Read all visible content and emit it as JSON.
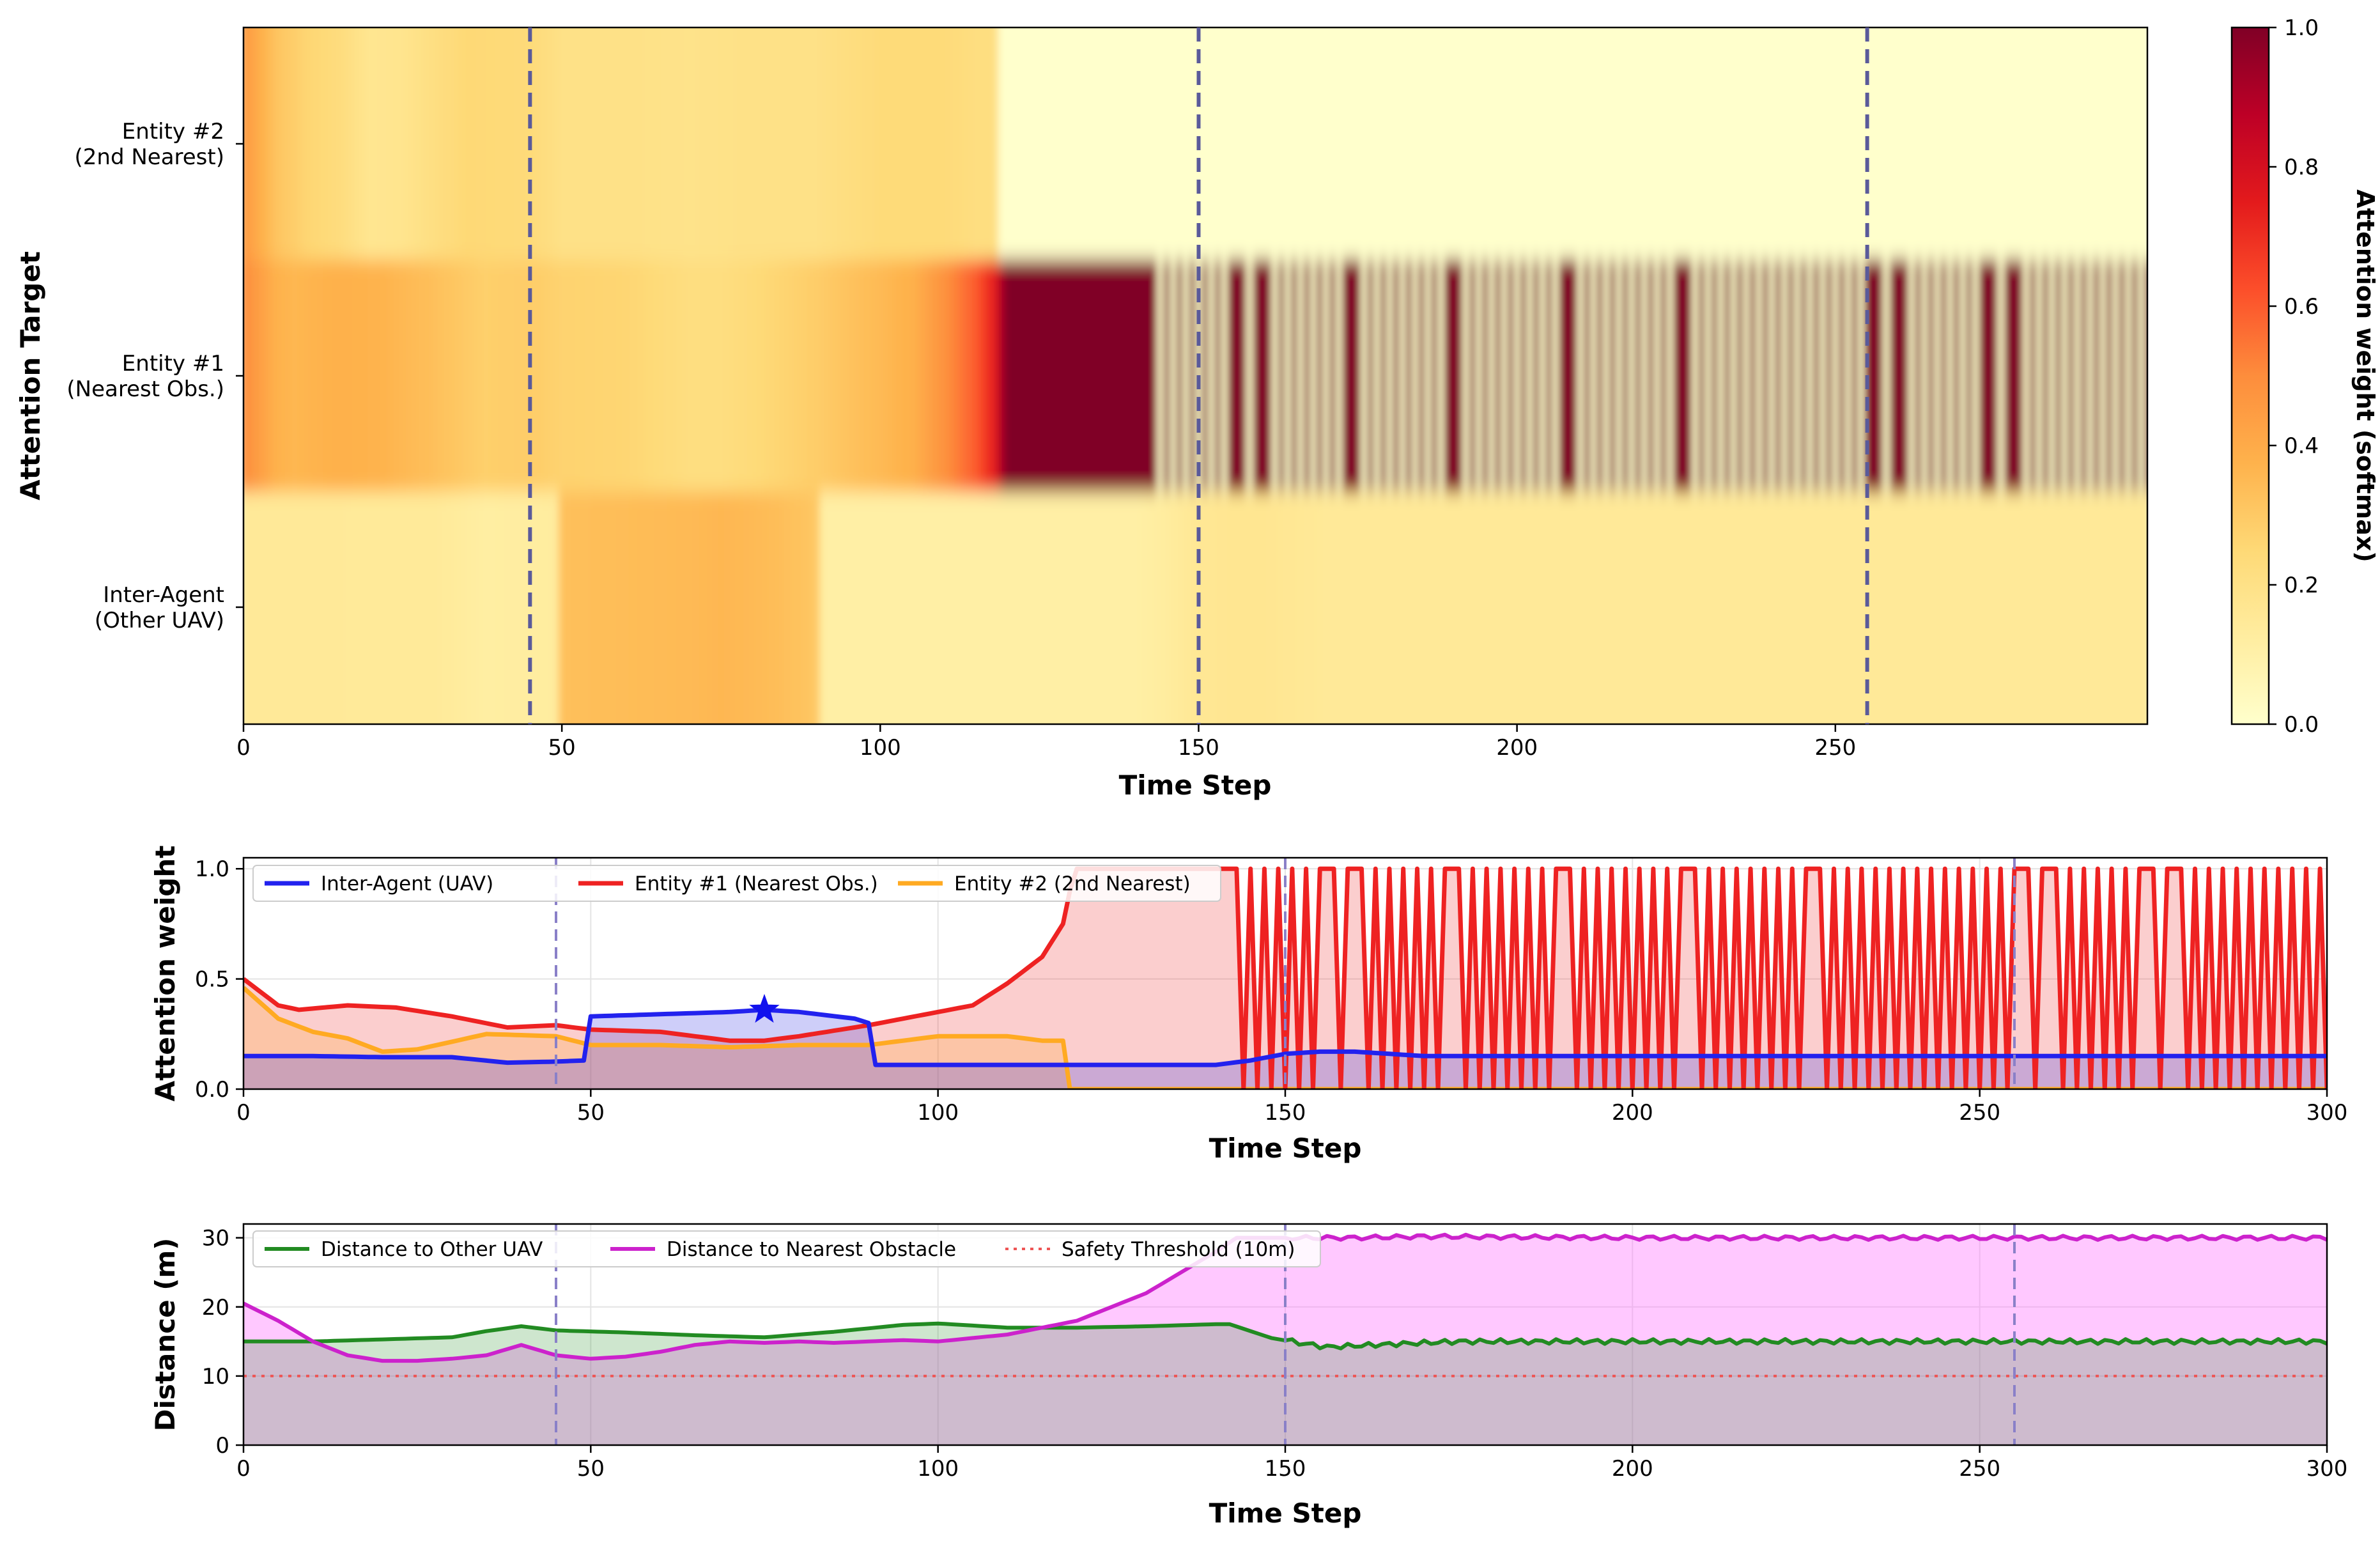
{
  "heatmap": {
    "title": "",
    "xlabel": "Time Step",
    "ylabel": "Attention Target",
    "x_range": [
      0,
      299
    ],
    "x_ticks": [
      "0",
      "50",
      "100",
      "150",
      "200",
      "250"
    ],
    "rows": [
      {
        "line1": "Entity #2",
        "line2": "(2nd Nearest)"
      },
      {
        "line1": "Entity #1",
        "line2": "(Nearest Obs.)"
      },
      {
        "line1": "Inter-Agent",
        "line2": "(Other UAV)"
      }
    ],
    "colorbar": {
      "label": "Attention weight (softmax)",
      "ticks": [
        "0.0",
        "0.2",
        "0.4",
        "0.6",
        "0.8",
        "1.0"
      ],
      "range": [
        0,
        1
      ],
      "colormap": [
        "#ffffcc",
        "#ffeda0",
        "#fed976",
        "#feb24c",
        "#fd8d3c",
        "#fc4e2a",
        "#e31a1c",
        "#bd0026",
        "#800026"
      ]
    },
    "markers": [
      45,
      150,
      255
    ]
  },
  "weights_panel": {
    "xlabel": "Time Step",
    "ylabel": "Attention weight",
    "x_ticks": [
      "0",
      "50",
      "100",
      "150",
      "200",
      "250",
      "300"
    ],
    "y_ticks": [
      "0.0",
      "0.5",
      "1.0"
    ],
    "legend": [
      {
        "label": "Inter-Agent (UAV)",
        "color": "#2222ee"
      },
      {
        "label": "Entity #1 (Nearest Obs.)",
        "color": "#ee2222"
      },
      {
        "label": "Entity #2 (2nd Nearest)",
        "color": "#ffaa22"
      }
    ],
    "star_marker": {
      "x": 75,
      "y": 0.36
    }
  },
  "distance_panel": {
    "xlabel": "Time Step",
    "ylabel": "Distance (m)",
    "x_ticks": [
      "0",
      "50",
      "100",
      "150",
      "200",
      "250",
      "300"
    ],
    "y_ticks": [
      "0",
      "10",
      "20",
      "30"
    ],
    "legend": [
      {
        "label": "Distance to Other UAV",
        "color": "#228b22"
      },
      {
        "label": "Distance to Nearest Obstacle",
        "color": "#cc22cc"
      },
      {
        "label": "Safety Threshold (10m)",
        "color": "#ee5555"
      }
    ],
    "threshold": 10
  },
  "chart_data": [
    {
      "type": "heatmap",
      "xlabel": "Time Step",
      "ylabel": "Attention Target",
      "rows": [
        "Entity #2 (2nd Nearest)",
        "Entity #1 (Nearest Obs.)",
        "Inter-Agent (Other UAV)"
      ],
      "x_range": [
        0,
        299
      ],
      "colorbar_range": [
        0,
        1
      ],
      "markers": [
        45,
        150,
        255
      ],
      "note": "Cell values are the same attention weights as the line chart below."
    },
    {
      "type": "line",
      "xlabel": "Time Step",
      "ylabel": "Attention weight",
      "xlim": [
        0,
        300
      ],
      "ylim": [
        0,
        1.05
      ],
      "series": [
        {
          "name": "Inter-Agent (UAV)",
          "points": [
            [
              0,
              0.15
            ],
            [
              10,
              0.15
            ],
            [
              20,
              0.145
            ],
            [
              30,
              0.145
            ],
            [
              38,
              0.12
            ],
            [
              45,
              0.125
            ],
            [
              49,
              0.13
            ],
            [
              50,
              0.33
            ],
            [
              60,
              0.34
            ],
            [
              70,
              0.35
            ],
            [
              75,
              0.36
            ],
            [
              80,
              0.35
            ],
            [
              88,
              0.32
            ],
            [
              90,
              0.3
            ],
            [
              91,
              0.11
            ],
            [
              100,
              0.11
            ],
            [
              110,
              0.11
            ],
            [
              120,
              0.11
            ],
            [
              130,
              0.11
            ],
            [
              140,
              0.11
            ],
            [
              145,
              0.13
            ],
            [
              150,
              0.16
            ],
            [
              155,
              0.17
            ],
            [
              160,
              0.17
            ],
            [
              170,
              0.15
            ],
            [
              180,
              0.15
            ],
            [
              200,
              0.15
            ],
            [
              220,
              0.15
            ],
            [
              240,
              0.15
            ],
            [
              260,
              0.15
            ],
            [
              280,
              0.15
            ],
            [
              300,
              0.15
            ]
          ]
        },
        {
          "name": "Entity #1 (Nearest Obs.)",
          "points": [
            [
              0,
              0.5
            ],
            [
              5,
              0.38
            ],
            [
              8,
              0.36
            ],
            [
              15,
              0.38
            ],
            [
              22,
              0.37
            ],
            [
              30,
              0.33
            ],
            [
              38,
              0.28
            ],
            [
              45,
              0.29
            ],
            [
              50,
              0.27
            ],
            [
              60,
              0.26
            ],
            [
              70,
              0.22
            ],
            [
              75,
              0.22
            ],
            [
              80,
              0.24
            ],
            [
              90,
              0.29
            ],
            [
              100,
              0.35
            ],
            [
              105,
              0.38
            ],
            [
              110,
              0.48
            ],
            [
              115,
              0.6
            ],
            [
              118,
              0.75
            ],
            [
              119,
              0.9
            ],
            [
              120,
              1.0
            ],
            [
              140,
              1.0
            ]
          ],
          "oscillating_after": 140,
          "oscillates_between": [
            0.0,
            1.0
          ]
        },
        {
          "name": "Entity #2 (2nd Nearest)",
          "points": [
            [
              0,
              0.46
            ],
            [
              5,
              0.32
            ],
            [
              10,
              0.26
            ],
            [
              15,
              0.23
            ],
            [
              20,
              0.17
            ],
            [
              25,
              0.18
            ],
            [
              35,
              0.25
            ],
            [
              45,
              0.24
            ],
            [
              50,
              0.2
            ],
            [
              60,
              0.2
            ],
            [
              70,
              0.19
            ],
            [
              80,
              0.2
            ],
            [
              90,
              0.2
            ],
            [
              95,
              0.22
            ],
            [
              100,
              0.24
            ],
            [
              110,
              0.24
            ],
            [
              115,
              0.22
            ],
            [
              118,
              0.22
            ],
            [
              119,
              0.0
            ],
            [
              300,
              0.0
            ]
          ]
        }
      ],
      "markers": [
        45,
        150,
        255
      ],
      "star": {
        "x": 75,
        "y": 0.36
      }
    },
    {
      "type": "line",
      "xlabel": "Time Step",
      "ylabel": "Distance (m)",
      "xlim": [
        0,
        300
      ],
      "ylim": [
        0,
        32
      ],
      "series": [
        {
          "name": "Distance to Other UAV",
          "points": [
            [
              0,
              15
            ],
            [
              10,
              15
            ],
            [
              20,
              15.3
            ],
            [
              30,
              15.6
            ],
            [
              35,
              16.5
            ],
            [
              40,
              17.2
            ],
            [
              45,
              16.6
            ],
            [
              55,
              16.3
            ],
            [
              65,
              15.9
            ],
            [
              75,
              15.6
            ],
            [
              85,
              16.4
            ],
            [
              95,
              17.4
            ],
            [
              100,
              17.6
            ],
            [
              110,
              17
            ],
            [
              120,
              17
            ],
            [
              130,
              17.2
            ],
            [
              140,
              17.5
            ],
            [
              142,
              17.5
            ],
            [
              148,
              15.5
            ],
            [
              152,
              14.8
            ],
            [
              156,
              14.2
            ],
            [
              165,
              14.6
            ],
            [
              175,
              15
            ],
            [
              200,
              15
            ],
            [
              230,
              15
            ],
            [
              260,
              15
            ],
            [
              280,
              15
            ],
            [
              300,
              15
            ]
          ]
        },
        {
          "name": "Distance to Nearest Obstacle",
          "points": [
            [
              0,
              20.5
            ],
            [
              5,
              18
            ],
            [
              10,
              15
            ],
            [
              15,
              13
            ],
            [
              20,
              12.2
            ],
            [
              25,
              12.2
            ],
            [
              30,
              12.5
            ],
            [
              35,
              13
            ],
            [
              40,
              14.5
            ],
            [
              45,
              13
            ],
            [
              50,
              12.5
            ],
            [
              55,
              12.8
            ],
            [
              60,
              13.5
            ],
            [
              65,
              14.5
            ],
            [
              70,
              15
            ],
            [
              75,
              14.8
            ],
            [
              80,
              15
            ],
            [
              85,
              14.8
            ],
            [
              90,
              15
            ],
            [
              95,
              15.2
            ],
            [
              100,
              15
            ],
            [
              110,
              16
            ],
            [
              120,
              18
            ],
            [
              130,
              22
            ],
            [
              135,
              25
            ],
            [
              140,
              28
            ],
            [
              143,
              30
            ],
            [
              150,
              30
            ],
            [
              160,
              30
            ],
            [
              170,
              30.2
            ],
            [
              200,
              30
            ],
            [
              230,
              30
            ],
            [
              260,
              30
            ],
            [
              280,
              30
            ],
            [
              300,
              30
            ]
          ]
        },
        {
          "name": "Safety Threshold (10m)",
          "points": [
            [
              0,
              10
            ],
            [
              300,
              10
            ]
          ]
        }
      ],
      "markers": [
        45,
        150,
        255
      ]
    }
  ]
}
